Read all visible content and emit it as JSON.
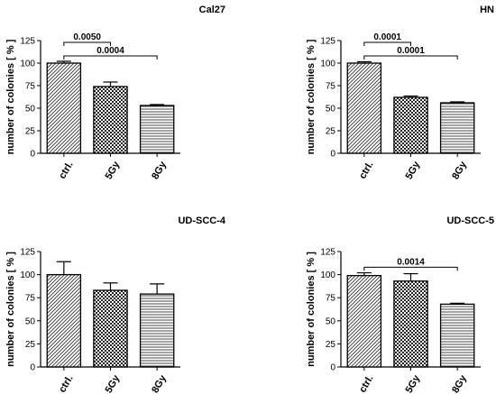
{
  "chart_data": [
    {
      "type": "bar",
      "title": "Cal27",
      "ylabel": "number of colonies [ % ]",
      "categories": [
        "ctrl.",
        "5Gy",
        "8Gy"
      ],
      "values": [
        100,
        74,
        53
      ],
      "errors": [
        2,
        5,
        1
      ],
      "ylim": [
        0,
        125
      ],
      "yticks": [
        0,
        25,
        50,
        75,
        100,
        125
      ],
      "patterns": [
        "diagonal",
        "checker",
        "horizontal"
      ],
      "annotations": [
        {
          "from": 0,
          "to": 1,
          "level": 125,
          "label": "0.0050"
        },
        {
          "from": 0,
          "to": 2,
          "level": 110,
          "label": "0.0004"
        }
      ]
    },
    {
      "type": "bar",
      "title": "HN",
      "ylabel": "number of colonies [ % ]",
      "categories": [
        "ctrl.",
        "5Gy",
        "8Gy"
      ],
      "values": [
        100,
        62,
        56
      ],
      "errors": [
        1.5,
        1.5,
        1
      ],
      "ylim": [
        0,
        125
      ],
      "yticks": [
        0,
        25,
        50,
        75,
        100,
        125
      ],
      "patterns": [
        "diagonal",
        "checker",
        "horizontal"
      ],
      "annotations": [
        {
          "from": 0,
          "to": 1,
          "level": 125,
          "label": "0.0001"
        },
        {
          "from": 0,
          "to": 2,
          "level": 110,
          "label": "0.0001"
        }
      ]
    },
    {
      "type": "bar",
      "title": "UD-SCC-4",
      "ylabel": "number of colonies [ % ]",
      "categories": [
        "ctrl.",
        "5Gy",
        "8Gy"
      ],
      "values": [
        100,
        83,
        79
      ],
      "errors": [
        14,
        8,
        11
      ],
      "ylim": [
        0,
        125
      ],
      "yticks": [
        0,
        25,
        50,
        75,
        100,
        125
      ],
      "patterns": [
        "diagonal",
        "checker",
        "horizontal"
      ],
      "annotations": []
    },
    {
      "type": "bar",
      "title": "UD-SCC-5",
      "ylabel": "number of colonies [ % ]",
      "categories": [
        "ctrl.",
        "5Gy",
        "8Gy"
      ],
      "values": [
        99,
        93,
        68
      ],
      "errors": [
        3,
        8,
        1
      ],
      "ylim": [
        0,
        125
      ],
      "yticks": [
        0,
        25,
        50,
        75,
        100,
        125
      ],
      "patterns": [
        "diagonal",
        "checker",
        "horizontal"
      ],
      "annotations": [
        {
          "from": 0,
          "to": 2,
          "level": 110,
          "label": "0.0014"
        }
      ]
    }
  ]
}
